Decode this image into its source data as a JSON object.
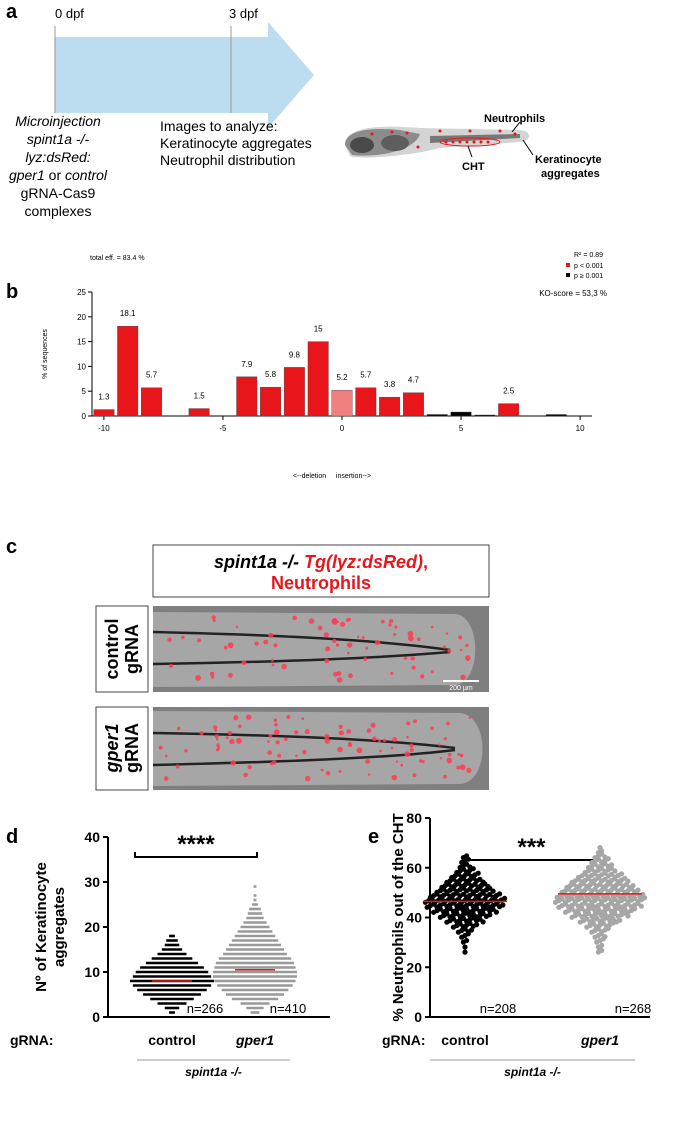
{
  "panel_labels": [
    "a",
    "b",
    "c",
    "d",
    "e"
  ],
  "panel_a": {
    "timeline": [
      "0 dpf",
      "3 dpf"
    ],
    "injection": [
      "Microinjection",
      "spint1a -/-",
      "lyz:dsRed:"
    ],
    "injection_mixed": [
      "gper1",
      " or ",
      "control"
    ],
    "injection_end": [
      "gRNA-Cas9",
      "complexes"
    ],
    "analysis": [
      "Images to analyze:",
      "Keratinocyte aggregates",
      "Neutrophil distribution"
    ],
    "fish_labels": {
      "neutrophils": "Neutrophils",
      "cht": "CHT",
      "keratinocyte": [
        "Keratinocyte",
        "aggregates"
      ]
    }
  },
  "panel_c": {
    "title": [
      "spint1a -/- ",
      "Tg(lyz:dsRed)",
      ",",
      "Neutrophils"
    ],
    "rows": [
      [
        "control",
        "gRNA"
      ],
      [
        "gper1",
        "gRNA"
      ]
    ],
    "scale": "200 µm"
  },
  "chart_data": [
    {
      "type": "bar",
      "annotations": [
        "total eff. = 83.4 %",
        "R² = 0.89",
        "KO-score = 53,3 %"
      ],
      "y_label": "% of sequences",
      "x_label": "<--deletion     insertion-->",
      "xlim": [
        -10.5,
        10.5
      ],
      "xticks": [
        -10,
        -5,
        0,
        5,
        10
      ],
      "ylim": [
        0,
        25
      ],
      "yticks": [
        0,
        5,
        10,
        15,
        20,
        25
      ],
      "legend": "top-right",
      "series": [
        {
          "name": "p < 0.001",
          "color": "#e8161b",
          "data_labels": true,
          "x": [
            -10,
            -9,
            -8,
            -6,
            -4,
            -3,
            -2,
            -1,
            1,
            2,
            3,
            7
          ],
          "values": [
            1.3,
            18.1,
            5.7,
            1.5,
            7.9,
            5.8,
            9.8,
            15,
            5.7,
            3.8,
            4.7,
            2.5
          ]
        },
        {
          "name": "p ≥ 0.001",
          "color": "#000000",
          "data_labels": false,
          "x": [
            4,
            5,
            6,
            9
          ],
          "values": [
            0.3,
            0.8,
            0.2,
            0.3
          ]
        },
        {
          "color": "#f08080",
          "data_labels": true,
          "x": [
            0
          ],
          "values": [
            5.2
          ]
        }
      ]
    },
    {
      "type": "dotplot",
      "categories": [
        "control",
        "gper1"
      ],
      "y_label": [
        "Nº of Keratinocyte",
        "aggregates"
      ],
      "x_label": "gRNA:",
      "group_label": "spint1a -/-",
      "significance": "****",
      "ylim": [
        0,
        40
      ],
      "yticks": [
        0,
        10,
        20,
        30,
        40
      ],
      "series": [
        {
          "color": "#000000",
          "mean_color": "#e8161b",
          "levels": [
            1,
            2,
            3,
            4,
            5,
            6,
            7,
            8,
            9,
            10,
            11,
            12,
            13,
            14,
            15,
            16,
            17,
            18
          ],
          "counts": [
            2,
            5,
            10,
            15,
            20,
            24,
            27,
            29,
            27,
            25,
            22,
            18,
            14,
            10,
            7,
            5,
            4,
            2
          ],
          "mean": 8,
          "n_label": "n=266"
        },
        {
          "color": "#999999",
          "mean_color": "#e8161b",
          "levels": [
            1,
            2,
            3,
            4,
            5,
            6,
            7,
            8,
            9,
            10,
            11,
            12,
            13,
            14,
            15,
            16,
            17,
            18,
            19,
            20,
            21,
            22,
            23,
            24,
            25,
            26,
            27,
            29
          ],
          "counts": [
            3,
            6,
            10,
            16,
            20,
            23,
            26,
            28,
            29,
            29,
            28,
            27,
            25,
            22,
            20,
            18,
            16,
            14,
            12,
            10,
            8,
            6,
            5,
            4,
            2,
            1,
            1,
            1
          ],
          "mean": 10.5,
          "n_label": "n=410"
        }
      ]
    },
    {
      "type": "swarm",
      "categories": [
        "control",
        "gper1"
      ],
      "y_label": [
        "% Neutrophils out of the CHT"
      ],
      "x_label": "gRNA:",
      "group_label": "spint1a -/-",
      "significance": "***",
      "ylim": [
        0,
        80
      ],
      "yticks": [
        0,
        20,
        40,
        60,
        80
      ],
      "series": [
        {
          "color": "#000000",
          "mean_color": "#e8161b",
          "bins": [
            26,
            28,
            30,
            32,
            34,
            36,
            38,
            40,
            42,
            44,
            46,
            48,
            50,
            52,
            54,
            56,
            58,
            60,
            62,
            64,
            66
          ],
          "counts": [
            1,
            1,
            2,
            3,
            5,
            8,
            12,
            16,
            20,
            24,
            25,
            22,
            18,
            15,
            12,
            9,
            6,
            4,
            3,
            2
          ],
          "mean": 46.5,
          "n_label": "n=208"
        },
        {
          "color": "#a6a6a6",
          "mean_color": "#e8161b",
          "bins": [
            26,
            28,
            30,
            32,
            34,
            36,
            38,
            40,
            42,
            44,
            46,
            48,
            50,
            52,
            54,
            56,
            58,
            60,
            62,
            64,
            66,
            68,
            70
          ],
          "counts": [
            2,
            2,
            3,
            4,
            6,
            9,
            13,
            18,
            22,
            26,
            28,
            27,
            24,
            21,
            18,
            14,
            10,
            8,
            6,
            4,
            2,
            1
          ],
          "mean": 49.5,
          "n_label": "n=268"
        }
      ]
    }
  ]
}
